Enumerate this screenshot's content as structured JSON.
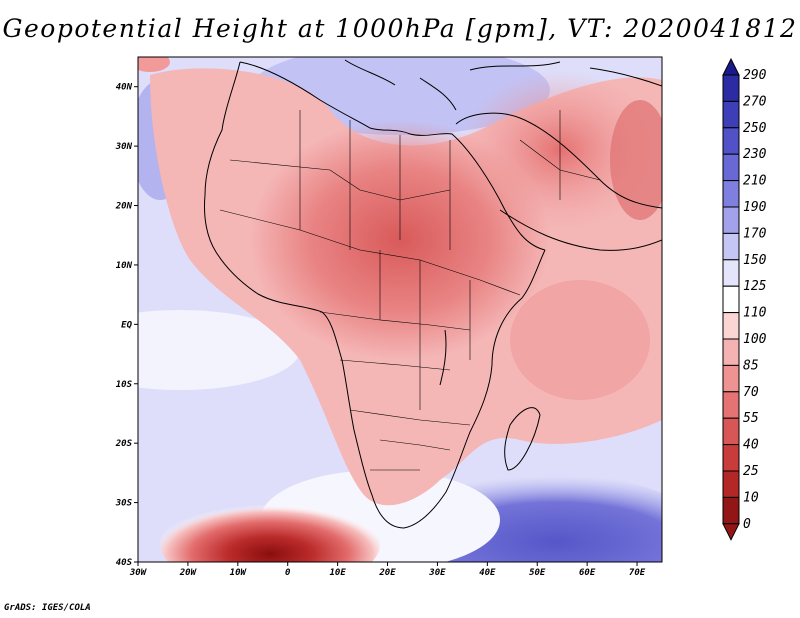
{
  "title": "Geopotential Height at 1000hPa [gpm], VT: 2020041812",
  "credit": "GrADS: IGES/COLA",
  "map": {
    "variable": "Geopotential Height at 1000hPa",
    "units": "gpm",
    "valid_time": "2020041812",
    "lon_range": [
      -30,
      75
    ],
    "lat_range": [
      -40,
      45
    ],
    "x_tick_labels": [
      "30W",
      "20W",
      "10W",
      "0",
      "10E",
      "20E",
      "30E",
      "40E",
      "50E",
      "60E",
      "70E"
    ],
    "y_tick_labels": [
      "40N",
      "30N",
      "20N",
      "10N",
      "EQ",
      "10S",
      "20S",
      "30S",
      "40S"
    ]
  },
  "colorbar": {
    "levels": [
      "290",
      "270",
      "250",
      "230",
      "210",
      "190",
      "170",
      "150",
      "125",
      "110",
      "100",
      "85",
      "70",
      "55",
      "40",
      "25",
      "10",
      "0"
    ],
    "colors": [
      "#1b1a8c",
      "#2b2ba3",
      "#3e3eb8",
      "#5252c8",
      "#6969d6",
      "#7f7fe0",
      "#a2a2ec",
      "#c6c6f5",
      "#e4e4fb",
      "#ffffff",
      "#fbd4d4",
      "#f5b2b2",
      "#ee9292",
      "#e57373",
      "#d85656",
      "#c93c3c",
      "#b42727",
      "#931616"
    ]
  }
}
